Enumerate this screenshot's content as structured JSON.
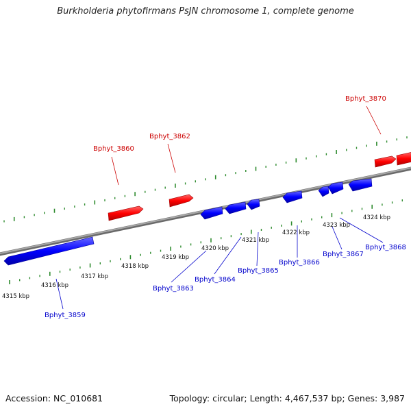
{
  "title": "Burkholderia phytofirmans PsJN chromosome 1, complete genome",
  "footer": {
    "accession": "Accession: NC_010681",
    "summary": "Topology: circular; Length: 4,467,537 bp; Genes: 3,987"
  },
  "colors": {
    "forward": "#ff0000",
    "reverse": "#0000ff",
    "backbone": "#888888",
    "tick": "#2e8b2e"
  },
  "ticks": [
    "4315 kbp",
    "4316 kbp",
    "4317 kbp",
    "4318 kbp",
    "4319 kbp",
    "4320 kbp",
    "4321 kbp",
    "4322 kbp",
    "4323 kbp",
    "4324 kbp"
  ],
  "genes": {
    "forward": [
      {
        "label": "Bphyt_3860"
      },
      {
        "label": "Bphyt_3862"
      },
      {
        "label": "Bphyt_3870"
      }
    ],
    "reverse": [
      {
        "label": "Bphyt_3859"
      },
      {
        "label": "Bphyt_3863"
      },
      {
        "label": "Bphyt_3864"
      },
      {
        "label": "Bphyt_3865"
      },
      {
        "label": "Bphyt_3866"
      },
      {
        "label": "Bphyt_3867"
      },
      {
        "label": "Bphyt_3868"
      }
    ]
  }
}
